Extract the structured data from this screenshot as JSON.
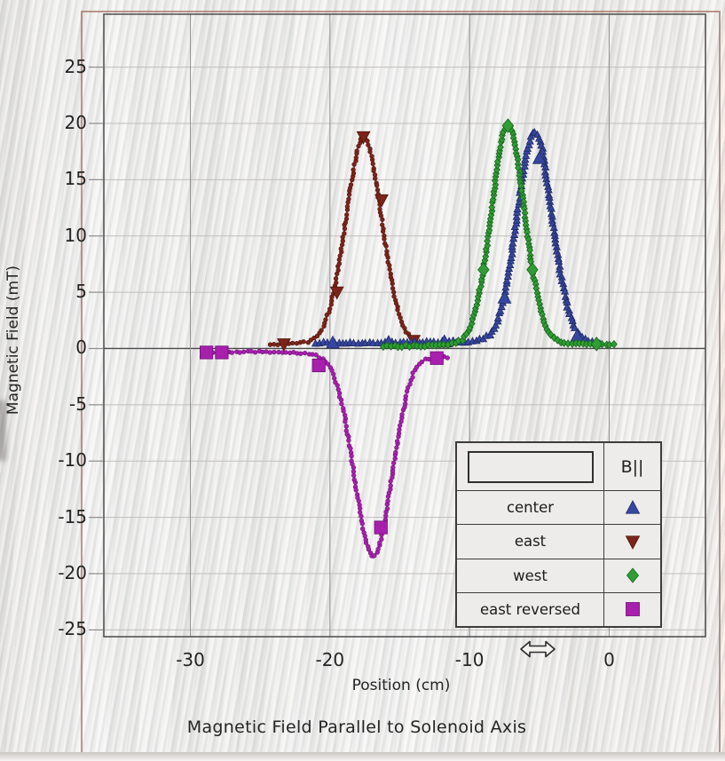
{
  "title": "Magnetic Field Parallel to Solenoid Axis",
  "axes": {
    "xlabel": "Position (cm)",
    "ylabel": "Magnetic Field (mT)"
  },
  "legend": {
    "header": "B||",
    "position": "lower right",
    "entries": [
      {
        "label": "center",
        "marker": "triangle-up",
        "color": "#3647a0",
        "edge": "#1f2a66"
      },
      {
        "label": "east",
        "marker": "triangle-down",
        "color": "#7c241a",
        "edge": "#4f150e"
      },
      {
        "label": "west",
        "marker": "diamond",
        "color": "#2f9e33",
        "edge": "#17641c"
      },
      {
        "label": "east reversed",
        "marker": "square",
        "color": "#a81fae",
        "edge": "#6e0f74"
      }
    ]
  },
  "cursor": {
    "type": "horizontal-resize-arrow"
  },
  "colors": {
    "window_border": "#9e6250",
    "frame": "#4a4a4a",
    "grid_vertical": "#8f8f8f",
    "grid_horizontal": "#c0bebb",
    "zero_line": "#4a4a4a",
    "text": "#242424"
  },
  "chart_data": {
    "type": "scatter",
    "title": "Magnetic Field Parallel to Solenoid Axis",
    "xlabel": "Position (cm)",
    "ylabel": "Magnetic Field (mT)",
    "xlim": [
      -36.2,
      6.9
    ],
    "ylim": [
      -25.6,
      29.7
    ],
    "xticks": [
      -30,
      -20,
      -10,
      0
    ],
    "yticks": [
      -25,
      -20,
      -15,
      -10,
      -5,
      0,
      5,
      10,
      15,
      20,
      25
    ],
    "grid": true,
    "legend_position": "lower right",
    "series": [
      {
        "name": "east",
        "marker": "triangle-down",
        "small_marker": "dot",
        "color": "#7c241a",
        "edge": "#4f150e",
        "points": [
          [
            -24.3,
            0.4
          ],
          [
            -23.5,
            0.4
          ],
          [
            -23,
            0.45
          ],
          [
            -22.5,
            0.45
          ],
          [
            -22,
            0.5
          ],
          [
            -21.5,
            0.6
          ],
          [
            -21,
            1.0
          ],
          [
            -20.5,
            1.8
          ],
          [
            -20,
            3.6
          ],
          [
            -19.5,
            6.4
          ],
          [
            -19,
            10.3
          ],
          [
            -18.5,
            14.6
          ],
          [
            -18,
            17.8
          ],
          [
            -17.8,
            18.5
          ],
          [
            -17.6,
            18.9
          ],
          [
            -17.3,
            18.4
          ],
          [
            -17,
            16.9
          ],
          [
            -16.5,
            13.2
          ],
          [
            -16,
            9.0
          ],
          [
            -15.5,
            5.3
          ],
          [
            -15,
            2.8
          ],
          [
            -14.5,
            1.4
          ],
          [
            -14,
            0.7
          ],
          [
            -13.5,
            0.45
          ],
          [
            -13,
            0.4
          ],
          [
            -12.5,
            0.35
          ],
          [
            -12,
            0.3
          ],
          [
            -11.3,
            0.3
          ]
        ],
        "big_markers": [
          [
            -23.3,
            0.4
          ],
          [
            -19.5,
            5.0
          ],
          [
            -17.6,
            18.8
          ],
          [
            -16.3,
            13.2
          ],
          [
            -14.0,
            0.7
          ]
        ]
      },
      {
        "name": "center",
        "marker": "triangle-up",
        "small_marker": "triangle-up",
        "color": "#3647a0",
        "edge": "#1f2a66",
        "points": [
          [
            -21,
            0.5
          ],
          [
            -20,
            0.5
          ],
          [
            -19,
            0.5
          ],
          [
            -18,
            0.5
          ],
          [
            -17,
            0.5
          ],
          [
            -16,
            0.5
          ],
          [
            -15,
            0.55
          ],
          [
            -14,
            0.55
          ],
          [
            -13,
            0.6
          ],
          [
            -12,
            0.6
          ],
          [
            -11,
            0.65
          ],
          [
            -10.5,
            0.6
          ],
          [
            -10,
            0.6
          ],
          [
            -9.5,
            0.7
          ],
          [
            -9,
            0.9
          ],
          [
            -8.5,
            1.3
          ],
          [
            -8,
            2.5
          ],
          [
            -7.5,
            4.6
          ],
          [
            -7,
            8.3
          ],
          [
            -6.5,
            12.7
          ],
          [
            -6,
            16.8
          ],
          [
            -5.6,
            18.9
          ],
          [
            -5.35,
            19.3
          ],
          [
            -5.1,
            19.0
          ],
          [
            -4.8,
            17.8
          ],
          [
            -4.5,
            15.3
          ],
          [
            -4,
            10.9
          ],
          [
            -3.5,
            6.8
          ],
          [
            -3,
            3.7
          ],
          [
            -2.5,
            1.9
          ],
          [
            -2,
            1.0
          ],
          [
            -1.5,
            0.7
          ],
          [
            -1,
            0.6
          ],
          [
            -0.6,
            0.5
          ]
        ],
        "big_markers": [
          [
            -19.8,
            0.5
          ],
          [
            -15.8,
            0.55
          ],
          [
            -11.8,
            0.6
          ],
          [
            -7.5,
            4.5
          ],
          [
            -5.0,
            16.9
          ],
          [
            -2.3,
            1.1
          ]
        ]
      },
      {
        "name": "west",
        "marker": "diamond",
        "small_marker": "diamond",
        "color": "#2f9e33",
        "edge": "#17641c",
        "points": [
          [
            -16.2,
            0.2
          ],
          [
            -15,
            0.2
          ],
          [
            -14,
            0.25
          ],
          [
            -13,
            0.25
          ],
          [
            -12,
            0.3
          ],
          [
            -11,
            0.5
          ],
          [
            -10.5,
            0.8
          ],
          [
            -10,
            1.7
          ],
          [
            -9.5,
            3.7
          ],
          [
            -9,
            7.0
          ],
          [
            -8.5,
            11.6
          ],
          [
            -8,
            16.3
          ],
          [
            -7.6,
            19.2
          ],
          [
            -7.25,
            19.9
          ],
          [
            -6.9,
            19.2
          ],
          [
            -6.5,
            16.3
          ],
          [
            -6,
            11.6
          ],
          [
            -5.5,
            7.0
          ],
          [
            -5,
            3.9
          ],
          [
            -4.5,
            1.8
          ],
          [
            -4,
            0.9
          ],
          [
            -3.5,
            0.6
          ],
          [
            -3,
            0.5
          ],
          [
            -2.5,
            0.45
          ],
          [
            -2,
            0.45
          ],
          [
            -1.5,
            0.4
          ],
          [
            -1,
            0.4
          ],
          [
            -0.5,
            0.4
          ],
          [
            0,
            0.4
          ],
          [
            0.5,
            0.35
          ]
        ],
        "big_markers": [
          [
            -9.0,
            7.0
          ],
          [
            -7.25,
            19.8
          ],
          [
            -5.5,
            7.0
          ],
          [
            -0.9,
            0.4
          ]
        ]
      },
      {
        "name": "east reversed",
        "marker": "square",
        "small_marker": "dot",
        "color": "#a81fae",
        "edge": "#6e0f74",
        "points": [
          [
            -28.9,
            -0.35
          ],
          [
            -28,
            -0.35
          ],
          [
            -27,
            -0.3
          ],
          [
            -26,
            -0.3
          ],
          [
            -25,
            -0.3
          ],
          [
            -24,
            -0.3
          ],
          [
            -23,
            -0.35
          ],
          [
            -22,
            -0.4
          ],
          [
            -21.5,
            -0.45
          ],
          [
            -21,
            -0.6
          ],
          [
            -20.5,
            -0.9
          ],
          [
            -20,
            -1.6
          ],
          [
            -19.5,
            -3.2
          ],
          [
            -19,
            -5.7
          ],
          [
            -18.5,
            -9.3
          ],
          [
            -18,
            -13.4
          ],
          [
            -17.5,
            -16.8
          ],
          [
            -17.1,
            -18.3
          ],
          [
            -16.9,
            -18.6
          ],
          [
            -16.6,
            -18.1
          ],
          [
            -16.3,
            -16.7
          ],
          [
            -16,
            -14.9
          ],
          [
            -15.5,
            -10.9
          ],
          [
            -15,
            -7.1
          ],
          [
            -14.5,
            -4.0
          ],
          [
            -14,
            -2.1
          ],
          [
            -13.5,
            -1.2
          ],
          [
            -13,
            -0.9
          ],
          [
            -12.5,
            -0.85
          ],
          [
            -12,
            -0.8
          ],
          [
            -11.5,
            -0.75
          ]
        ],
        "big_markers": [
          [
            -28.85,
            -0.35
          ],
          [
            -27.75,
            -0.35
          ],
          [
            -20.8,
            -1.5
          ],
          [
            -16.35,
            -15.9
          ],
          [
            -12.35,
            -0.85
          ]
        ]
      }
    ]
  }
}
